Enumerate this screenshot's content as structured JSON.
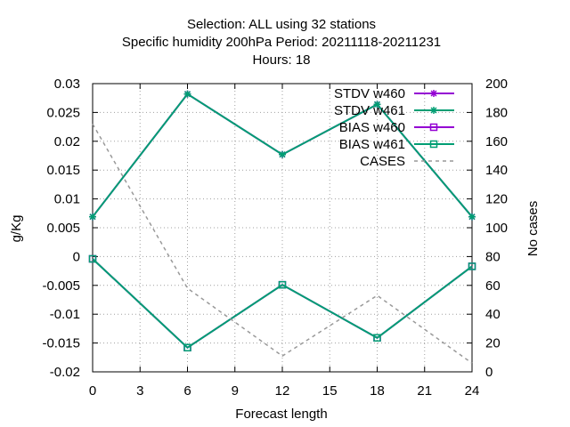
{
  "chart_data": {
    "type": "line",
    "title_lines": [
      "Selection: ALL using    32 stations",
      "Specific humidity 200hPa   Period: 20211118-20211231",
      "Hours:  18"
    ],
    "xlabel": "Forecast length",
    "ylabel": "g/Kg",
    "y2label": "No cases",
    "x_ticks": [
      0,
      3,
      6,
      9,
      12,
      15,
      18,
      21,
      24
    ],
    "xlim": [
      0,
      24
    ],
    "ylim": [
      -0.02,
      0.03
    ],
    "y_ticks": [
      0.03,
      0.025,
      0.02,
      0.015,
      0.01,
      0.005,
      0,
      -0.005,
      -0.01,
      -0.015,
      -0.02
    ],
    "y_tick_labels": [
      "0.03",
      "0.025",
      "0.02",
      "0.015",
      "0.01",
      "0.005",
      "0",
      "-0.005",
      "-0.01",
      "-0.015",
      "-0.02"
    ],
    "y2lim": [
      0,
      200
    ],
    "y2_ticks": [
      200,
      180,
      160,
      140,
      120,
      100,
      80,
      60,
      40,
      20,
      0
    ],
    "grid": true,
    "legend_position": "top-right",
    "series": [
      {
        "name": "STDV w460",
        "axis": "y1",
        "color": "#9400d3",
        "marker": "star",
        "dash": false,
        "x": [
          0,
          6,
          12,
          18,
          24
        ],
        "values": [
          0.0069,
          0.0282,
          0.0177,
          0.0264,
          0.0069
        ]
      },
      {
        "name": "STDV w461",
        "axis": "y1",
        "color": "#009e73",
        "marker": "star",
        "dash": false,
        "x": [
          0,
          6,
          12,
          18,
          24
        ],
        "values": [
          0.0069,
          0.0282,
          0.0177,
          0.0264,
          0.0069
        ]
      },
      {
        "name": "BIAS w460",
        "axis": "y1",
        "color": "#9400d3",
        "marker": "square",
        "dash": false,
        "x": [
          0,
          6,
          12,
          18,
          24
        ],
        "values": [
          -0.0004,
          -0.0158,
          -0.0049,
          -0.0141,
          -0.0017
        ]
      },
      {
        "name": "BIAS w461",
        "axis": "y1",
        "color": "#009e73",
        "marker": "square",
        "dash": false,
        "x": [
          0,
          6,
          12,
          18,
          24
        ],
        "values": [
          -0.0004,
          -0.0158,
          -0.0049,
          -0.0141,
          -0.0017
        ]
      },
      {
        "name": "CASES",
        "axis": "y2",
        "color": "#999999",
        "marker": "none",
        "dash": true,
        "x": [
          0,
          6,
          12,
          18,
          24
        ],
        "values": [
          172,
          58,
          11,
          53,
          6
        ]
      }
    ]
  }
}
